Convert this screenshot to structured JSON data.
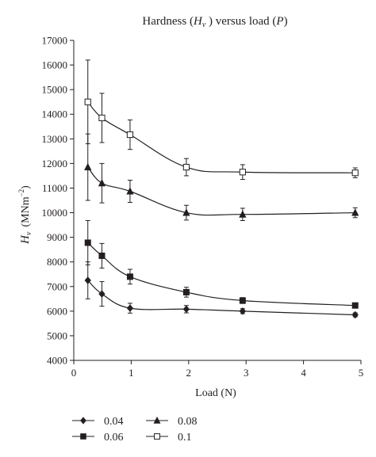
{
  "chart_data": {
    "type": "line",
    "title": "Hardness (Hᵥ ) versus load (P)",
    "title_parts": {
      "prefix": "Hardness (",
      "h": "H",
      "h_sub": "ν",
      "middle": " ) versus load (",
      "p": "P",
      "suffix": ")"
    },
    "xlabel": "Load (N)",
    "ylabel": "Hᵥ (MNm⁻²)",
    "ylabel_parts": {
      "h": "H",
      "h_sub": "ν",
      "unit_open": "(MNm",
      "unit_exp": "−2",
      "unit_close": ")"
    },
    "xlim": [
      0,
      5
    ],
    "ylim": [
      4000,
      17000
    ],
    "x_ticks": [
      "0",
      "1",
      "2",
      "3",
      "4",
      "5"
    ],
    "y_ticks": [
      "4000",
      "5000",
      "6000",
      "7000",
      "8000",
      "9000",
      "10000",
      "11000",
      "12000",
      "13000",
      "14000",
      "15000",
      "16000",
      "17000"
    ],
    "grid": false,
    "legend_position": "bottom",
    "x": [
      0.245,
      0.49,
      0.98,
      1.96,
      2.94,
      4.9
    ],
    "series": [
      {
        "name": "0.04",
        "marker": "diamond",
        "values": [
          7250,
          6700,
          6120,
          6080,
          6000,
          5850
        ],
        "errors": [
          750,
          500,
          200,
          150,
          100,
          80
        ]
      },
      {
        "name": "0.06",
        "marker": "filled-square",
        "values": [
          8780,
          8250,
          7400,
          6770,
          6430,
          6230
        ],
        "errors": [
          900,
          500,
          300,
          200,
          120,
          80
        ]
      },
      {
        "name": "0.08",
        "marker": "triangle",
        "values": [
          11850,
          11200,
          10870,
          10000,
          9930,
          10000
        ],
        "errors": [
          1350,
          800,
          450,
          300,
          250,
          200
        ]
      },
      {
        "name": "0.1",
        "marker": "open-square",
        "values": [
          14500,
          13850,
          13170,
          11850,
          11650,
          11620
        ],
        "errors": [
          1700,
          1000,
          600,
          350,
          300,
          200
        ]
      }
    ]
  }
}
